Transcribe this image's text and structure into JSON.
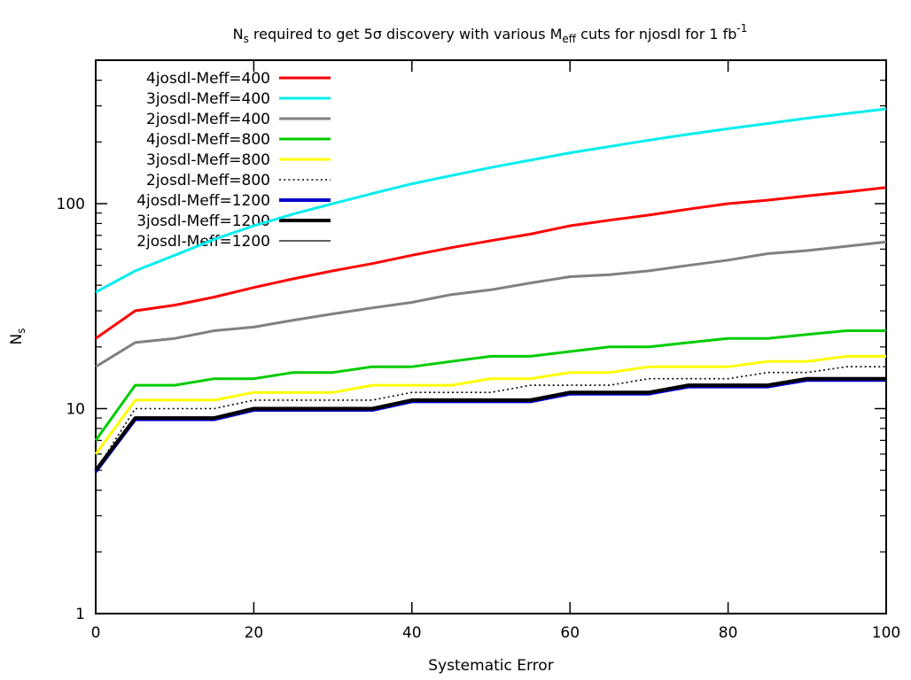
{
  "chart_data": {
    "type": "line",
    "title_segments": [
      {
        "t": "N",
        "style": "normal"
      },
      {
        "t": "s",
        "style": "sub"
      },
      {
        "t": " required to get 5σ discovery with various M",
        "style": "normal"
      },
      {
        "t": "eff",
        "style": "sub"
      },
      {
        "t": " cuts for njosdl for 1 fb",
        "style": "normal"
      },
      {
        "t": "-1",
        "style": "sup"
      }
    ],
    "title_plain": "Ns required to get 5σ discovery with various Meff cuts for njosdl for 1 fb-1",
    "xlabel": "Systematic Error",
    "ylabel_segments": [
      {
        "t": "N",
        "style": "normal"
      },
      {
        "t": "s",
        "style": "sub"
      }
    ],
    "ylabel_plain": "Ns",
    "x_scale": "linear",
    "y_scale": "log",
    "xlim": [
      0,
      100
    ],
    "ylim": [
      1,
      500
    ],
    "x_tick_labels": [
      "0",
      "20",
      "40",
      "60",
      "80",
      "100"
    ],
    "x_ticks": [
      0,
      20,
      40,
      60,
      80,
      100
    ],
    "y_tick_labels": [
      "1",
      "10",
      "100"
    ],
    "y_ticks": [
      1,
      10,
      100
    ],
    "y_minor_ticks": [
      2,
      3,
      4,
      5,
      6,
      7,
      8,
      9,
      20,
      30,
      40,
      50,
      60,
      70,
      80,
      90,
      200,
      300,
      400
    ],
    "grid": "off",
    "legend_position": "top-left",
    "x": [
      0,
      5,
      10,
      15,
      20,
      25,
      30,
      35,
      40,
      45,
      50,
      55,
      60,
      65,
      70,
      75,
      80,
      85,
      90,
      95,
      100
    ],
    "series": [
      {
        "name": "4josdl-Meff=400",
        "color": "#ff0000",
        "width": 3,
        "dash": "solid",
        "values": [
          22,
          30,
          32,
          35,
          39,
          43,
          47,
          51,
          56,
          61,
          66,
          71,
          78,
          83,
          88,
          94,
          100,
          104,
          109,
          114,
          120
        ]
      },
      {
        "name": "3josdl-Meff=400",
        "color": "#00eeee",
        "width": 3,
        "dash": "solid",
        "values": [
          37,
          47,
          56,
          67,
          78,
          89,
          100,
          112,
          125,
          137,
          150,
          163,
          177,
          190,
          204,
          218,
          232,
          246,
          261,
          275,
          290
        ]
      },
      {
        "name": "2josdl-Meff=400",
        "color": "#808080",
        "width": 3,
        "dash": "solid",
        "values": [
          16,
          21,
          22,
          24,
          25,
          27,
          29,
          31,
          33,
          36,
          38,
          41,
          44,
          45,
          47,
          50,
          53,
          57,
          59,
          62,
          65
        ]
      },
      {
        "name": "4josdl-Meff=800",
        "color": "#00cc00",
        "width": 3,
        "dash": "solid",
        "values": [
          7,
          13,
          13,
          14,
          14,
          15,
          15,
          16,
          16,
          17,
          18,
          18,
          19,
          20,
          20,
          21,
          22,
          22,
          23,
          24,
          24
        ]
      },
      {
        "name": "3josdl-Meff=800",
        "color": "#ffff00",
        "width": 3,
        "dash": "solid",
        "values": [
          6,
          11,
          11,
          11,
          12,
          12,
          12,
          13,
          13,
          13,
          14,
          14,
          15,
          15,
          16,
          16,
          16,
          17,
          17,
          18,
          18
        ]
      },
      {
        "name": "2josdl-Meff=800",
        "color": "#000000",
        "width": 1.6,
        "dash": "dotted",
        "values": [
          5,
          10,
          10,
          10,
          11,
          11,
          11,
          11,
          12,
          12,
          12,
          13,
          13,
          13,
          14,
          14,
          14,
          15,
          15,
          16,
          16
        ]
      },
      {
        "name": "4josdl-Meff=1200",
        "color": "#0000cc",
        "width": 4,
        "dash": "solid",
        "note": "overlaps 3josdl-Meff=1200 curve, only lower fringe visible",
        "values": [
          5,
          9,
          9,
          9,
          10,
          10,
          10,
          10,
          11,
          11,
          11,
          11,
          12,
          12,
          12,
          13,
          13,
          13,
          14,
          14,
          14
        ]
      },
      {
        "name": "3josdl-Meff=1200",
        "color": "#000000",
        "width": 4,
        "dash": "solid",
        "values": [
          5,
          9,
          9,
          9,
          10,
          10,
          10,
          10,
          11,
          11,
          11,
          11,
          12,
          12,
          12,
          13,
          13,
          13,
          14,
          14,
          14
        ]
      },
      {
        "name": "2josdl-Meff=1200",
        "color": "#000000",
        "width": 1.2,
        "dash": "solid",
        "note": "overlaps 3josdl-Meff=1200 curve",
        "values": [
          5,
          9,
          9,
          9,
          10,
          10,
          10,
          10,
          11,
          11,
          11,
          11,
          12,
          12,
          12,
          13,
          13,
          13,
          14,
          14,
          14
        ]
      }
    ]
  }
}
